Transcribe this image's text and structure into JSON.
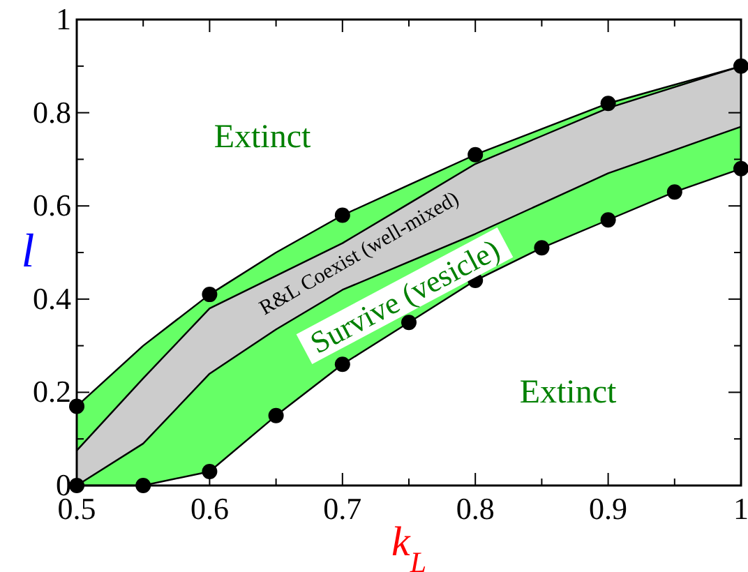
{
  "chart_data": {
    "type": "area",
    "stacked": true,
    "xlabel": "k$_{L}$",
    "ylabel": "l",
    "xlim": [
      0.5,
      1
    ],
    "ylim": [
      0,
      1
    ],
    "xticks": [
      0.5,
      {
        "value": 0.55,
        "label": null
      },
      0.6,
      {
        "value": 0.65,
        "label": null
      },
      0.7,
      {
        "value": 0.75,
        "label": null
      },
      0.8,
      {
        "value": 0.85,
        "label": null
      },
      0.9,
      {
        "value": 0.95,
        "label": null
      },
      {
        "value": 1,
        "label": "1"
      }
    ],
    "yticks": [
      {
        "value": 0,
        "label": "0"
      },
      {
        "value": 0.1,
        "label": null
      },
      0.2,
      {
        "value": 0.3,
        "label": null
      },
      0.4,
      {
        "value": 0.5,
        "label": null
      },
      0.6,
      {
        "value": 0.7,
        "label": null
      },
      0.8,
      {
        "value": 0.9,
        "label": null
      },
      {
        "value": 1,
        "label": "1"
      }
    ],
    "grid": false,
    "x": [
      0.5,
      0.55,
      0.6,
      0.65,
      0.7,
      0.75,
      0.8,
      0.85,
      0.9,
      0.95,
      1.0
    ],
    "series": [
      {
        "color": "#ffffff",
        "marker": "circle",
        "values": [
          0,
          0,
          0.03,
          0.15,
          0.26,
          0.35,
          0.44,
          0.51,
          0.57,
          0.63,
          0.68
        ]
      },
      {
        "color": "#66ff66",
        "values": [
          0,
          0.09,
          0.21,
          0.185,
          0.16,
          0.13,
          0.1,
          0.095,
          0.1,
          0.09,
          0.09
        ]
      },
      {
        "color": "#cccccc",
        "values": [
          0.075,
          0.14,
          0.14,
          0.115,
          0.1,
          0.125,
          0.15,
          0.145,
          0.14,
          0.135,
          0.13
        ]
      },
      {
        "color": "#66ff66",
        "values": [
          0.095,
          0.07,
          0.03,
          0.05,
          0.06,
          0.04,
          0.02,
          0.015,
          0.01,
          0.005,
          0
        ]
      },
      {
        "type": "scatter",
        "color": "#000000",
        "marker": "circle",
        "x": [
          0.5,
          0.6,
          0.7,
          0.8,
          0.9,
          1.0
        ],
        "values": [
          0.17,
          0.41,
          0.58,
          0.71,
          0.82,
          0.9
        ]
      }
    ],
    "annotations": [
      "Extinct",
      "R&L Coexist (well-mixed)",
      "Survive (vesicle)",
      "Extinct"
    ]
  }
}
